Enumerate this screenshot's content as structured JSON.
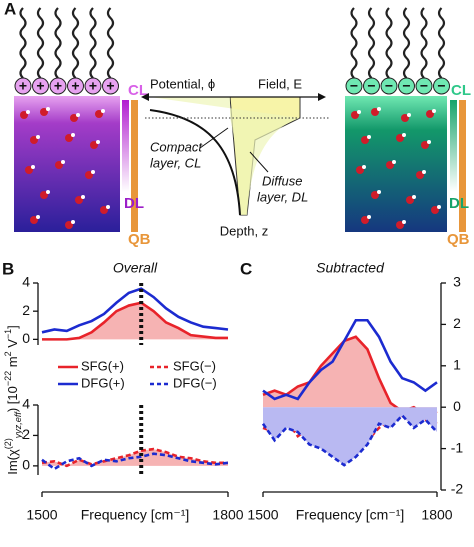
{
  "diagram": {
    "panel_label": "A",
    "left_ion_sign": "+",
    "right_ion_sign": "−",
    "cl": "CL",
    "dl": "DL",
    "qb": "QB",
    "potential": "Potential, ϕ",
    "field": "Field, E",
    "compact": [
      "Compact",
      "layer, CL"
    ],
    "diffuse": [
      "Diffuse",
      "layer, DL"
    ],
    "depth": "Depth, z"
  },
  "chart_data": [
    {
      "type": "line",
      "panel_label": "B",
      "title": "Overall",
      "xlabel": "Frequency [cm⁻¹]",
      "ylabel": [
        "Im(χ",
        "(2)",
        "yyz,eff",
        ") [10",
        "−22",
        " m",
        "2",
        " V",
        "−1",
        "]"
      ],
      "x": [
        1500,
        1520,
        1540,
        1560,
        1580,
        1600,
        1620,
        1640,
        1660,
        1680,
        1700,
        1720,
        1740,
        1760,
        1780,
        1800
      ],
      "xlim": [
        1500,
        1800
      ],
      "xticks": [
        1500,
        1800
      ],
      "marker_x": 1660,
      "legend": true,
      "panels": [
        {
          "ylim": [
            -0.4,
            4
          ],
          "yticks": [
            0,
            2,
            4
          ],
          "series": [
            {
              "name": "SFG(+)",
              "color": "#e8232a",
              "dash": false,
              "fill_color": "#f6b3b3",
              "values": [
                0,
                0,
                0,
                0.1,
                0.5,
                1.2,
                2.0,
                2.4,
                2.6,
                2.0,
                1.2,
                0.8,
                0.3,
                0.2,
                0.1,
                0.1
              ]
            },
            {
              "name": "DFG(+)",
              "color": "#1c2bd0",
              "dash": false,
              "values": [
                0.5,
                0.7,
                0.6,
                1.0,
                1.3,
                1.8,
                2.6,
                3.3,
                3.6,
                3.0,
                2.2,
                1.6,
                1.2,
                0.9,
                0.8,
                0.7
              ]
            }
          ]
        },
        {
          "ylim": [
            -0.6,
            4
          ],
          "yticks": [
            0,
            2,
            4
          ],
          "series": [
            {
              "name": "SFG(−)",
              "color": "#e8232a",
              "dash": true,
              "fill_color": "#f6b3b3",
              "values": [
                0.2,
                0.3,
                0,
                0.4,
                0.1,
                0.3,
                0.5,
                0.7,
                1.0,
                1.1,
                0.9,
                0.6,
                0.5,
                0.3,
                0.2,
                0.2
              ]
            },
            {
              "name": "DFG(−)",
              "color": "#1c2bd0",
              "dash": true,
              "values": [
                0.4,
                -0.2,
                0.3,
                0.5,
                0,
                0.4,
                0.3,
                0.5,
                0.6,
                0.8,
                0.7,
                0.5,
                0.3,
                0.2,
                0.1,
                0.2
              ]
            }
          ]
        }
      ]
    },
    {
      "type": "line",
      "panel_label": "C",
      "title": "Subtracted",
      "xlabel": "Frequency [cm⁻¹]",
      "x": [
        1500,
        1520,
        1540,
        1560,
        1580,
        1600,
        1620,
        1640,
        1660,
        1680,
        1700,
        1720,
        1740,
        1760,
        1780,
        1800
      ],
      "xlim": [
        1500,
        1800
      ],
      "xticks": [
        1500,
        1800
      ],
      "ylim": [
        -2,
        3
      ],
      "yticks": [
        -2,
        -1,
        0,
        1,
        2,
        3
      ],
      "legend": false,
      "series": [
        {
          "name": "SFG(+)",
          "color": "#e8232a",
          "dash": false,
          "fill_color": "#f6b3b3",
          "values": [
            0.3,
            0.4,
            0.3,
            0.5,
            0.6,
            1.0,
            1.3,
            1.6,
            1.7,
            1.4,
            0.7,
            0.1,
            -0.1,
            0,
            -0.2,
            -0.1
          ]
        },
        {
          "name": "DFG(+)",
          "color": "#1c2bd0",
          "dash": false,
          "values": [
            0.4,
            0.2,
            0.3,
            0.2,
            0.6,
            0.9,
            1.1,
            1.6,
            2.1,
            2.1,
            1.7,
            1.1,
            0.7,
            0.6,
            0.4,
            0.6
          ]
        },
        {
          "name": "SFG(−)",
          "color": "#e8232a",
          "dash": true,
          "values": [
            -0.5,
            -0.6,
            -0.3,
            -0.7,
            -0.5,
            -0.7,
            -0.9,
            -1.2,
            -1.1,
            -0.8,
            -0.5,
            -0.3,
            -0.2,
            -0.4,
            -0.3,
            -0.4
          ]
        },
        {
          "name": "DFG(−)",
          "color": "#1c2bd0",
          "dash": true,
          "fill_color": "#b9b9f2",
          "values": [
            -0.4,
            -0.8,
            -0.5,
            -0.6,
            -0.9,
            -1.0,
            -1.2,
            -1.4,
            -1.2,
            -0.9,
            -0.4,
            -0.5,
            -0.2,
            -0.5,
            -0.3,
            -0.6
          ]
        }
      ]
    }
  ]
}
